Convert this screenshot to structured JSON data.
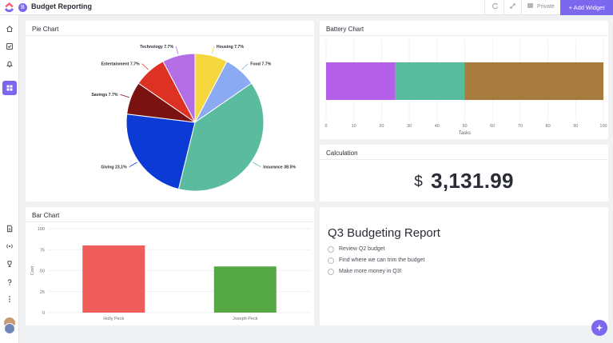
{
  "app": {
    "title": "Budget Reporting",
    "workspace_initial": "B",
    "privacy_label": "Private",
    "add_widget_label": "+ Add Widget"
  },
  "rail": {
    "items": [
      "home-icon",
      "checklist-icon",
      "bell-icon",
      "dashboard-icon"
    ],
    "bottom_items": [
      "document-icon",
      "broadcast-icon",
      "trophy-icon",
      "help-icon",
      "more-icon"
    ]
  },
  "cards": {
    "pie": {
      "title": "Pie Chart"
    },
    "battery": {
      "title": "Battery Chart"
    },
    "calc": {
      "title": "Calculation",
      "currency": "$",
      "value": "3,131.99"
    },
    "bar": {
      "title": "Bar Chart"
    },
    "report": {
      "title": "Q3 Budgeting Report",
      "items": [
        "Review Q2 budget",
        "Find where we can trim the budget",
        "Make more money in Q3!"
      ]
    }
  },
  "chart_data": [
    {
      "type": "pie",
      "slices": [
        {
          "label": "Housing 7.7%",
          "value": 7.7,
          "color": "#f5d63d"
        },
        {
          "label": "Food 7.7%",
          "value": 7.7,
          "color": "#8aaaf3"
        },
        {
          "label": "Insurance 38.5%",
          "value": 38.5,
          "color": "#5bbb9f"
        },
        {
          "label": "Giving 23.1%",
          "value": 23.1,
          "color": "#0b3bd4"
        },
        {
          "label": "Savings 7.7%",
          "value": 7.7,
          "color": "#7b1212"
        },
        {
          "label": "Entertainment 7.7%",
          "value": 7.7,
          "color": "#dd3124"
        },
        {
          "label": "Technology 7.7%",
          "value": 7.7,
          "color": "#b36ee6"
        }
      ]
    },
    {
      "type": "bar",
      "orientation": "horizontal-stacked",
      "segments": [
        {
          "value": 25,
          "color": "#b45fe8"
        },
        {
          "value": 25,
          "color": "#57bb9e"
        },
        {
          "value": 50,
          "color": "#a77b3e"
        }
      ],
      "xlim": [
        0,
        100
      ],
      "xticks": [
        "0",
        "10",
        "20",
        "30",
        "40",
        "50",
        "60",
        "70",
        "80",
        "90",
        "100"
      ],
      "xlabel": "Tasks"
    },
    {
      "type": "bar",
      "categories": [
        "Holly Peck",
        "Joseph Peck"
      ],
      "values": [
        80,
        55
      ],
      "colors": [
        "#ef5d5a",
        "#56a845"
      ],
      "ylim": [
        0,
        100
      ],
      "yticks": [
        "0",
        "25",
        "50",
        "75",
        "100"
      ],
      "ylabel": "Cost"
    }
  ]
}
